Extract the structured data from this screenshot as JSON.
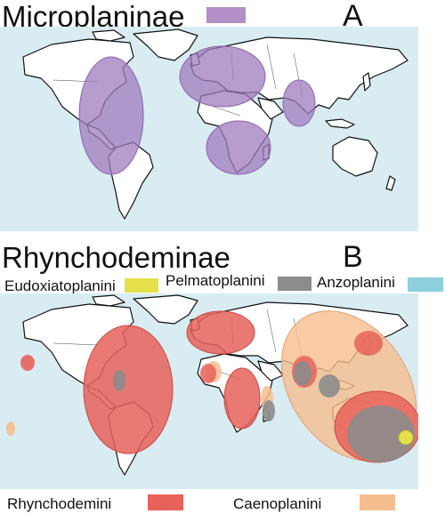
{
  "panel_a": {
    "title": "Microplaninae",
    "letter": "A",
    "legend": {
      "color": "#b18fc6"
    }
  },
  "panel_b": {
    "title": "Rhynchodeminae",
    "letter": "B",
    "legend": [
      {
        "label": "Eudoxiatoplanini",
        "color": "#e5e04a"
      },
      {
        "label": "Pelmatoplanini",
        "color": "#8c8c8c"
      },
      {
        "label": "Anzoplanini",
        "color": "#8ecfdd"
      }
    ],
    "bottom_legend": [
      {
        "label": "Rhynchodemini",
        "color": "#e8625a"
      },
      {
        "label": "Caenoplanini",
        "color": "#f6be8e"
      }
    ]
  },
  "colors": {
    "ocean": "#d8ecf2",
    "microplaninae": "#b18fc6",
    "rhynchodemini": "#e8625a",
    "caenoplanini": "#f6be8e",
    "pelmatoplanini": "#8c8c8c",
    "eudoxiatoplanini": "#e5e04a",
    "anzoplanini": "#8ecfdd"
  }
}
